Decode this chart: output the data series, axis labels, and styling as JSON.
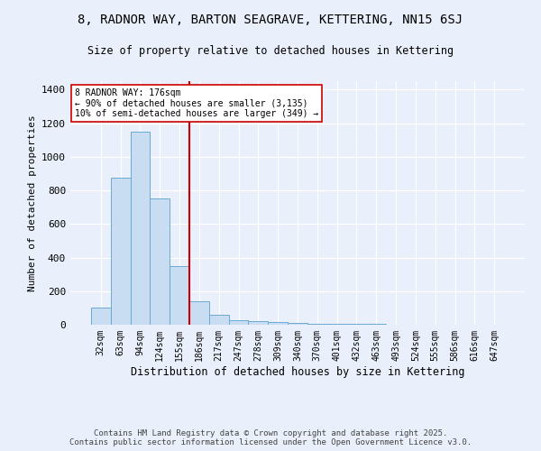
{
  "title": "8, RADNOR WAY, BARTON SEAGRAVE, KETTERING, NN15 6SJ",
  "subtitle": "Size of property relative to detached houses in Kettering",
  "xlabel": "Distribution of detached houses by size in Kettering",
  "ylabel": "Number of detached properties",
  "categories": [
    "32sqm",
    "63sqm",
    "94sqm",
    "124sqm",
    "155sqm",
    "186sqm",
    "217sqm",
    "247sqm",
    "278sqm",
    "309sqm",
    "340sqm",
    "370sqm",
    "401sqm",
    "432sqm",
    "463sqm",
    "493sqm",
    "524sqm",
    "555sqm",
    "586sqm",
    "616sqm",
    "647sqm"
  ],
  "values": [
    103,
    876,
    1147,
    750,
    350,
    140,
    60,
    28,
    20,
    15,
    10,
    5,
    5,
    3,
    3,
    2,
    1,
    1,
    0,
    0,
    0
  ],
  "bar_color": "#c9ddf2",
  "bar_edge_color": "#6aaad4",
  "vline_color": "#cc0000",
  "annotation_text": "8 RADNOR WAY: 176sqm\n← 90% of detached houses are smaller (3,135)\n10% of semi-detached houses are larger (349) →",
  "annotation_box_color": "white",
  "annotation_box_edge_color": "#cc0000",
  "ylim": [
    0,
    1450
  ],
  "background_color": "#eaf0fb",
  "grid_color": "white",
  "footer1": "Contains HM Land Registry data © Crown copyright and database right 2025.",
  "footer2": "Contains public sector information licensed under the Open Government Licence v3.0."
}
